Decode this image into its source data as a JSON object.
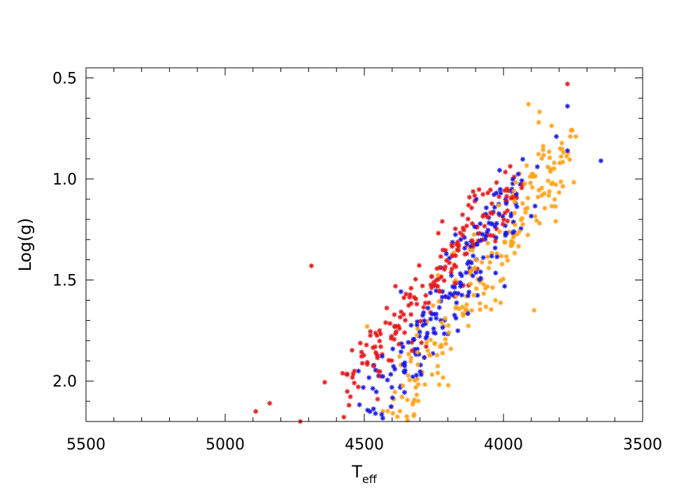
{
  "chart_data": {
    "type": "scatter",
    "title": "",
    "xlabel": "T",
    "xlabel_sub": "eff",
    "ylabel": "Log(g)",
    "xlim": [
      5500,
      3500
    ],
    "ylim": [
      0.45,
      2.2
    ],
    "x_reversed": true,
    "y_reversed": true,
    "x_ticks": [
      5500,
      5000,
      4500,
      4000,
      3500
    ],
    "x_tick_labels": [
      "5500",
      "5000",
      "4500",
      "4000",
      "3500"
    ],
    "y_ticks": [
      0.5,
      1.0,
      1.5,
      2.0
    ],
    "y_tick_labels": [
      "0.5",
      "1.0",
      "1.5",
      "2.0"
    ],
    "x_minor_step": 100,
    "y_minor_step": 0.1,
    "grid": false,
    "legend": "none",
    "marker": "asterisk",
    "series": [
      {
        "color": "#e41a1c",
        "trend": {
          "x0": 4560,
          "y0": 2.05,
          "x1": 3980,
          "y1": 1.02
        },
        "spread": 0.07,
        "n": 200,
        "extra_points": [
          [
            3770,
            0.53
          ],
          [
            4690,
            1.43
          ],
          [
            4890,
            2.15
          ],
          [
            4840,
            2.11
          ],
          [
            4730,
            2.2
          ],
          [
            4220,
            1.21
          ]
        ]
      },
      {
        "color": "#1c1ae6",
        "trend": {
          "x0": 4470,
          "y0": 2.15,
          "x1": 3930,
          "y1": 1.02
        },
        "spread": 0.075,
        "n": 200,
        "extra_points": [
          [
            3770,
            0.64
          ],
          [
            3810,
            0.79
          ],
          [
            3650,
            0.91
          ],
          [
            3770,
            0.86
          ]
        ]
      },
      {
        "color": "#ffa31a",
        "trend": {
          "x0": 4390,
          "y0": 2.15,
          "x1": 3780,
          "y1": 0.86
        },
        "spread": 0.09,
        "n": 220,
        "extra_points": [
          [
            3910,
            0.63
          ],
          [
            3890,
            1.65
          ],
          [
            3760,
            0.79
          ],
          [
            3740,
            0.79
          ],
          [
            4310,
            1.99
          ],
          [
            4490,
            1.73
          ]
        ]
      }
    ]
  }
}
